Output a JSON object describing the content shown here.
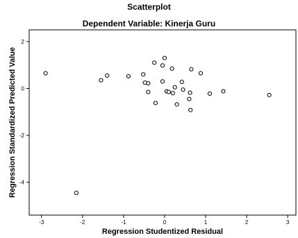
{
  "chart_data": {
    "type": "scatter",
    "title": "Scatterplot",
    "subtitle": "Dependent Variable: Kinerja Guru",
    "xlabel": "Regression Studentized Residual",
    "ylabel": "Regression Standardized Predicted Value",
    "xlim": [
      -3.3,
      3.2
    ],
    "ylim": [
      -5.4,
      2.5
    ],
    "xticks": [
      -3,
      -2,
      -1,
      0,
      1,
      2,
      3
    ],
    "yticks": [
      2,
      0,
      -2,
      -4
    ],
    "grid": false,
    "marker": "open-circle",
    "points": [
      {
        "x": -2.9,
        "y": 0.65
      },
      {
        "x": -2.15,
        "y": -4.45
      },
      {
        "x": -1.55,
        "y": 0.35
      },
      {
        "x": -1.4,
        "y": 0.55
      },
      {
        "x": -0.88,
        "y": 0.52
      },
      {
        "x": -0.52,
        "y": 0.6
      },
      {
        "x": -0.48,
        "y": 0.25
      },
      {
        "x": -0.4,
        "y": 0.22
      },
      {
        "x": -0.4,
        "y": -0.15
      },
      {
        "x": -0.25,
        "y": 1.1
      },
      {
        "x": -0.22,
        "y": -0.62
      },
      {
        "x": -0.05,
        "y": 0.98
      },
      {
        "x": -0.05,
        "y": 0.3
      },
      {
        "x": 0.0,
        "y": 1.3
      },
      {
        "x": 0.05,
        "y": -0.12
      },
      {
        "x": 0.1,
        "y": -0.15
      },
      {
        "x": 0.18,
        "y": 0.85
      },
      {
        "x": 0.2,
        "y": -0.2
      },
      {
        "x": 0.25,
        "y": 0.05
      },
      {
        "x": 0.3,
        "y": -0.68
      },
      {
        "x": 0.42,
        "y": 0.28
      },
      {
        "x": 0.45,
        "y": -0.05
      },
      {
        "x": 0.6,
        "y": -0.45
      },
      {
        "x": 0.62,
        "y": -0.18
      },
      {
        "x": 0.63,
        "y": -0.92
      },
      {
        "x": 0.65,
        "y": 0.82
      },
      {
        "x": 0.88,
        "y": 0.65
      },
      {
        "x": 1.1,
        "y": -0.22
      },
      {
        "x": 1.43,
        "y": -0.12
      },
      {
        "x": 2.55,
        "y": -0.28
      }
    ]
  }
}
